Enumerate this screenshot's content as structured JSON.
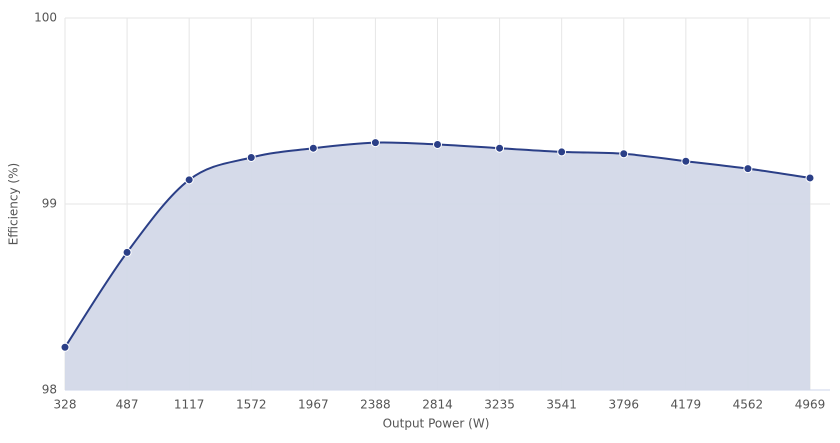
{
  "chart_data": {
    "type": "area",
    "x_label": "Output Power (W)",
    "y_label": "Efficiency (%)",
    "categories": [
      "328",
      "487",
      "1117",
      "1572",
      "1967",
      "2388",
      "2814",
      "3235",
      "3541",
      "3796",
      "4179",
      "4562",
      "4969"
    ],
    "series": [
      {
        "name": "Efficiency",
        "color": "#2b3f87",
        "fill": "#d3d8e8",
        "values": [
          98.23,
          98.74,
          99.13,
          99.25,
          99.3,
          99.33,
          99.32,
          99.3,
          99.28,
          99.27,
          99.23,
          99.19,
          99.14
        ]
      }
    ],
    "ylim": [
      98,
      100
    ],
    "yticks": [
      98,
      99,
      100
    ],
    "grid": true
  }
}
